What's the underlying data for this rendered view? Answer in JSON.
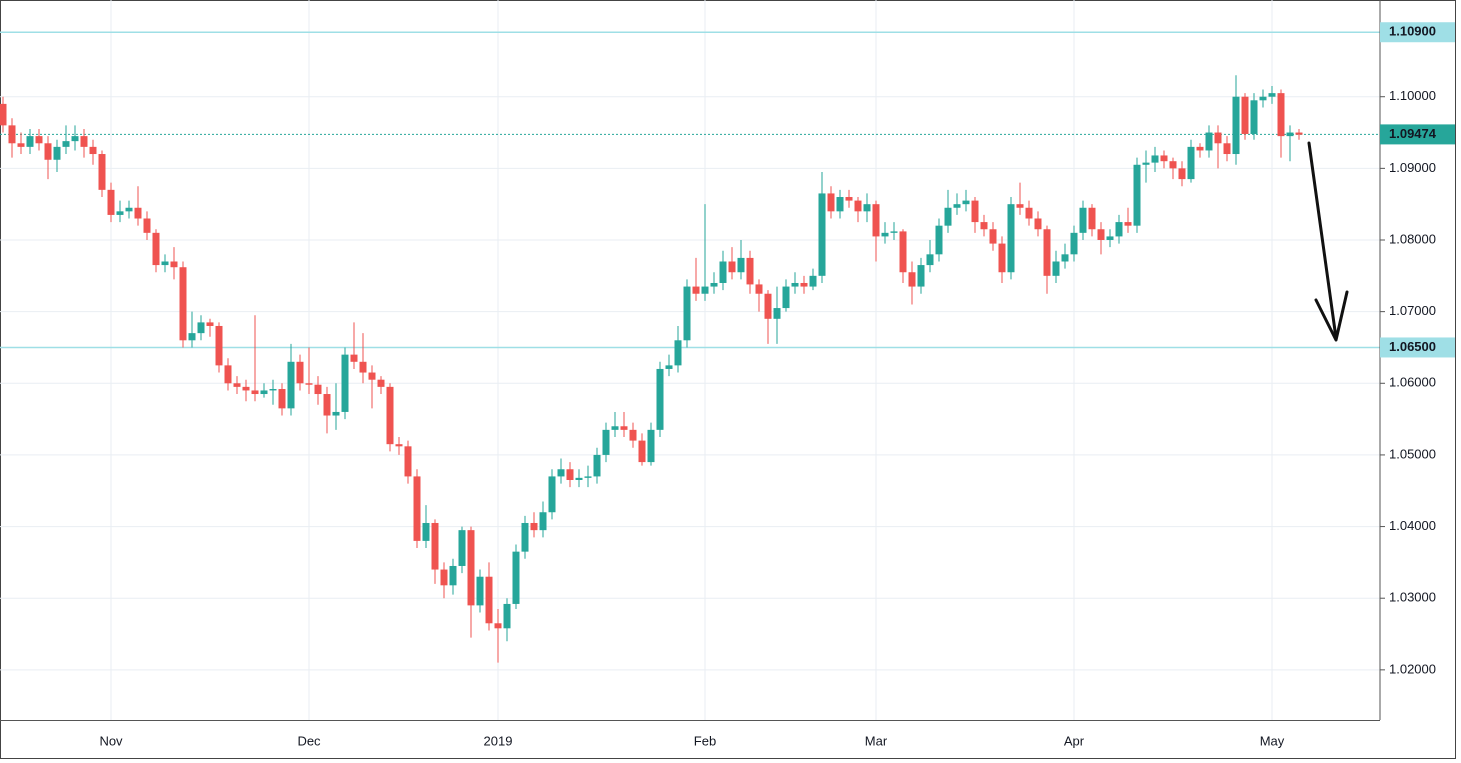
{
  "chart_data": {
    "type": "candlestick",
    "categories": [
      null,
      null,
      null,
      null,
      null,
      null,
      null,
      null,
      null,
      null,
      null,
      null,
      "Nov",
      null,
      null,
      null,
      null,
      null,
      null,
      null,
      null,
      null,
      null,
      null,
      null,
      null,
      null,
      null,
      null,
      null,
      null,
      null,
      null,
      null,
      "Dec",
      null,
      null,
      null,
      null,
      null,
      null,
      null,
      null,
      null,
      null,
      null,
      null,
      null,
      null,
      null,
      null,
      null,
      null,
      null,
      null,
      "2019",
      null,
      null,
      null,
      null,
      null,
      null,
      null,
      null,
      null,
      null,
      null,
      null,
      null,
      null,
      null,
      null,
      null,
      null,
      null,
      null,
      null,
      null,
      "Feb",
      null,
      null,
      null,
      null,
      null,
      null,
      null,
      null,
      null,
      null,
      null,
      null,
      null,
      null,
      null,
      null,
      null,
      null,
      "Mar",
      null,
      null,
      null,
      null,
      null,
      null,
      null,
      null,
      null,
      null,
      null,
      null,
      null,
      null,
      null,
      null,
      null,
      null,
      null,
      null,
      null,
      "Apr",
      null,
      null,
      null,
      null,
      null,
      null,
      null,
      null,
      null,
      null,
      null,
      null,
      null,
      null,
      null,
      null,
      null,
      null,
      null,
      null,
      null,
      "May",
      null,
      null,
      null
    ],
    "open": [
      1.099,
      1.096,
      1.0935,
      1.093,
      1.0945,
      1.0935,
      1.0912,
      1.093,
      1.0938,
      1.0945,
      1.093,
      1.092,
      1.087,
      1.0835,
      1.084,
      1.0845,
      1.083,
      1.081,
      1.0765,
      1.077,
      1.0762,
      1.066,
      1.067,
      1.0685,
      1.068,
      1.0625,
      1.06,
      1.0595,
      1.059,
      1.0585,
      1.059,
      1.0592,
      1.0565,
      1.063,
      1.06,
      1.0598,
      1.0585,
      1.0555,
      1.056,
      1.064,
      1.063,
      1.0615,
      1.0605,
      1.0595,
      1.0515,
      1.0512,
      1.047,
      1.038,
      1.0405,
      1.034,
      1.0318,
      1.0345,
      1.0395,
      1.029,
      1.033,
      1.0265,
      1.0258,
      1.0292,
      1.0365,
      1.0405,
      1.0395,
      1.042,
      1.047,
      1.048,
      1.0465,
      1.0468,
      1.047,
      1.05,
      1.0535,
      1.054,
      1.0535,
      1.052,
      1.049,
      1.0535,
      1.062,
      1.0625,
      1.066,
      1.0735,
      1.0725,
      1.0735,
      1.074,
      1.077,
      1.0755,
      1.0775,
      1.0738,
      1.0725,
      1.069,
      1.0705,
      1.0735,
      1.074,
      1.0735,
      1.075,
      1.0865,
      1.084,
      1.086,
      1.0855,
      1.084,
      1.085,
      1.0805,
      1.081,
      1.0812,
      1.0755,
      1.0735,
      1.0765,
      1.078,
      1.082,
      1.0845,
      1.085,
      1.0855,
      1.0825,
      1.0815,
      1.0795,
      1.0755,
      1.085,
      1.0845,
      1.083,
      1.0815,
      1.075,
      1.077,
      1.078,
      1.081,
      1.0845,
      1.0815,
      1.08,
      1.0805,
      1.0825,
      1.082,
      1.0905,
      1.0908,
      1.0918,
      1.091,
      1.09,
      1.0885,
      1.093,
      1.0925,
      1.095,
      1.0935,
      1.092,
      1.1,
      1.0948,
      1.0995,
      1.1,
      1.1005,
      1.0945,
      1.095
    ],
    "high": [
      1.1,
      1.097,
      1.095,
      1.0955,
      1.0955,
      1.0945,
      1.094,
      1.096,
      1.096,
      1.0955,
      1.094,
      1.0925,
      1.088,
      1.0855,
      1.0855,
      1.0875,
      1.084,
      1.0815,
      1.078,
      1.079,
      1.077,
      1.07,
      1.0695,
      1.069,
      1.0685,
      1.0635,
      1.061,
      1.0605,
      1.0695,
      1.06,
      1.0605,
      1.06,
      1.0655,
      1.064,
      1.065,
      1.061,
      1.0595,
      1.06,
      1.065,
      1.0685,
      1.067,
      1.0625,
      1.061,
      1.06,
      1.0525,
      1.052,
      1.048,
      1.043,
      1.041,
      1.035,
      1.0355,
      1.04,
      1.04,
      1.034,
      1.035,
      1.0285,
      1.03,
      1.0375,
      1.0415,
      1.042,
      1.0435,
      1.048,
      1.0495,
      1.049,
      1.048,
      1.0485,
      1.051,
      1.0545,
      1.056,
      1.056,
      1.0545,
      1.053,
      1.0545,
      1.063,
      1.064,
      1.068,
      1.0745,
      1.0775,
      1.085,
      1.0755,
      1.0785,
      1.079,
      1.08,
      1.0785,
      1.0745,
      1.073,
      1.0735,
      1.0745,
      1.0755,
      1.075,
      1.076,
      1.0895,
      1.0875,
      1.087,
      1.087,
      1.086,
      1.0865,
      1.0855,
      1.0825,
      1.0825,
      1.0815,
      1.077,
      1.0775,
      1.08,
      1.083,
      1.087,
      1.0865,
      1.087,
      1.086,
      1.0835,
      1.0825,
      1.0805,
      1.086,
      1.088,
      1.0855,
      1.084,
      1.082,
      1.0785,
      1.0795,
      1.082,
      1.0855,
      1.085,
      1.0825,
      1.0815,
      1.0835,
      1.0845,
      1.0915,
      1.0925,
      1.093,
      1.0925,
      1.0915,
      1.091,
      1.094,
      1.0935,
      1.096,
      1.096,
      1.0945,
      1.103,
      1.1005,
      1.1005,
      1.101,
      1.1015,
      1.101,
      1.096,
      1.0955
    ],
    "low": [
      1.095,
      1.0915,
      1.092,
      1.092,
      1.0925,
      1.0885,
      1.0895,
      1.092,
      1.0925,
      1.0915,
      1.0905,
      1.086,
      1.0825,
      1.0825,
      1.083,
      1.082,
      1.08,
      1.0755,
      1.0755,
      1.0745,
      1.065,
      1.065,
      1.066,
      1.0665,
      1.0615,
      1.059,
      1.0585,
      1.0575,
      1.0575,
      1.058,
      1.057,
      1.0555,
      1.0555,
      1.059,
      1.0585,
      1.057,
      1.053,
      1.0535,
      1.055,
      1.062,
      1.06,
      1.0565,
      1.0585,
      1.0505,
      1.05,
      1.046,
      1.037,
      1.037,
      1.032,
      1.03,
      1.0305,
      1.0335,
      1.0245,
      1.028,
      1.0255,
      1.021,
      1.024,
      1.0285,
      1.0355,
      1.0385,
      1.0385,
      1.041,
      1.046,
      1.0455,
      1.0455,
      1.0455,
      1.046,
      1.049,
      1.0525,
      1.0525,
      1.051,
      1.0485,
      1.0485,
      1.0525,
      1.061,
      1.0615,
      1.065,
      1.0715,
      1.0715,
      1.0725,
      1.073,
      1.0745,
      1.0745,
      1.0725,
      1.07,
      1.0655,
      1.0655,
      1.07,
      1.0725,
      1.0725,
      1.073,
      1.074,
      1.083,
      1.083,
      1.0845,
      1.0825,
      1.0825,
      1.077,
      1.0795,
      1.08,
      1.074,
      1.071,
      1.0725,
      1.0755,
      1.077,
      1.081,
      1.0835,
      1.084,
      1.081,
      1.0805,
      1.0785,
      1.074,
      1.0745,
      1.0835,
      1.082,
      1.0805,
      1.0725,
      1.074,
      1.076,
      1.077,
      1.08,
      1.0805,
      1.078,
      1.079,
      1.0795,
      1.081,
      1.081,
      1.088,
      1.0895,
      1.09,
      1.0885,
      1.0875,
      1.088,
      1.0915,
      1.0915,
      1.09,
      1.091,
      1.0905,
      1.094,
      1.094,
      1.0985,
      1.099,
      1.0915,
      1.091,
      1.094
    ],
    "close": [
      1.096,
      1.0935,
      1.093,
      1.0945,
      1.0935,
      1.0912,
      1.093,
      1.0938,
      1.0945,
      1.093,
      1.092,
      1.087,
      1.0835,
      1.084,
      1.0845,
      1.083,
      1.081,
      1.0765,
      1.077,
      1.0762,
      1.066,
      1.067,
      1.0685,
      1.068,
      1.0625,
      1.06,
      1.0595,
      1.059,
      1.0585,
      1.059,
      1.0592,
      1.0565,
      1.063,
      1.06,
      1.0598,
      1.0585,
      1.0555,
      1.056,
      1.064,
      1.063,
      1.0615,
      1.0605,
      1.0595,
      1.0515,
      1.0512,
      1.047,
      1.038,
      1.0405,
      1.034,
      1.0318,
      1.0345,
      1.0395,
      1.029,
      1.033,
      1.0265,
      1.0258,
      1.0292,
      1.0365,
      1.0405,
      1.0395,
      1.042,
      1.047,
      1.048,
      1.0465,
      1.0468,
      1.047,
      1.05,
      1.0535,
      1.054,
      1.0535,
      1.052,
      1.049,
      1.0535,
      1.062,
      1.0625,
      1.066,
      1.0735,
      1.0725,
      1.0735,
      1.074,
      1.077,
      1.0755,
      1.0775,
      1.0738,
      1.0725,
      1.069,
      1.0705,
      1.0735,
      1.074,
      1.0735,
      1.075,
      1.0865,
      1.084,
      1.086,
      1.0855,
      1.084,
      1.085,
      1.0805,
      1.081,
      1.0812,
      1.0755,
      1.0735,
      1.0765,
      1.078,
      1.082,
      1.0845,
      1.085,
      1.0855,
      1.0825,
      1.0815,
      1.0795,
      1.0755,
      1.085,
      1.0845,
      1.083,
      1.0815,
      1.075,
      1.077,
      1.078,
      1.081,
      1.0845,
      1.0815,
      1.08,
      1.0805,
      1.0825,
      1.082,
      1.0905,
      1.0908,
      1.0918,
      1.091,
      1.09,
      1.0885,
      1.093,
      1.0925,
      1.095,
      1.0935,
      1.092,
      1.1,
      1.0948,
      1.0995,
      1.1,
      1.1005,
      1.0945,
      1.095,
      1.0947
    ],
    "up_color": "#26a69a",
    "down_color": "#ef5350",
    "ylim": [
      1.013,
      1.1135
    ],
    "yticks": [
      {
        "value": 1.02,
        "label": "1.02000"
      },
      {
        "value": 1.03,
        "label": "1.03000"
      },
      {
        "value": 1.04,
        "label": "1.04000"
      },
      {
        "value": 1.05,
        "label": "1.05000"
      },
      {
        "value": 1.06,
        "label": "1.06000"
      },
      {
        "value": 1.07,
        "label": "1.07000"
      },
      {
        "value": 1.08,
        "label": "1.08000"
      },
      {
        "value": 1.09,
        "label": "1.09000"
      },
      {
        "value": 1.1,
        "label": "1.10000"
      }
    ],
    "grid": true,
    "horizontal_lines": [
      {
        "value": 1.109,
        "label": "1.10900",
        "color": "#9fdfe6"
      },
      {
        "value": 1.065,
        "label": "1.06500",
        "color": "#9fdfe6"
      }
    ],
    "last_price": {
      "value": 1.09474,
      "label": "1.09474",
      "color": "#26a69a"
    }
  }
}
